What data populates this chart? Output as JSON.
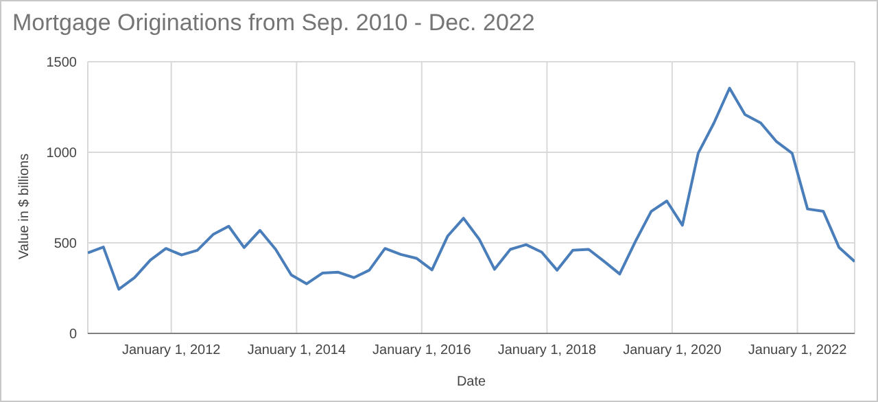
{
  "chart_data": {
    "type": "line",
    "title": "Mortgage Originations from Sep. 2010 - Dec. 2022",
    "xlabel": "Date",
    "ylabel": "Value in $ billions",
    "x": [
      "2010-09",
      "2010-12",
      "2011-03",
      "2011-06",
      "2011-09",
      "2011-12",
      "2012-03",
      "2012-06",
      "2012-09",
      "2012-12",
      "2013-03",
      "2013-06",
      "2013-09",
      "2013-12",
      "2014-03",
      "2014-06",
      "2014-09",
      "2014-12",
      "2015-03",
      "2015-06",
      "2015-09",
      "2015-12",
      "2016-03",
      "2016-06",
      "2016-09",
      "2016-12",
      "2017-03",
      "2017-06",
      "2017-09",
      "2017-12",
      "2018-03",
      "2018-06",
      "2018-09",
      "2018-12",
      "2019-03",
      "2019-06",
      "2019-09",
      "2019-12",
      "2020-03",
      "2020-06",
      "2020-09",
      "2020-12",
      "2021-03",
      "2021-06",
      "2021-09",
      "2021-12",
      "2022-03",
      "2022-06",
      "2022-09",
      "2022-12"
    ],
    "series": [
      {
        "color": "#4a7ebb",
        "values": [
          445,
          477,
          244,
          308,
          405,
          469,
          433,
          459,
          546,
          592,
          474,
          569,
          464,
          323,
          274,
          333,
          338,
          308,
          349,
          469,
          436,
          415,
          351,
          538,
          636,
          521,
          354,
          464,
          490,
          449,
          349,
          459,
          464,
          397,
          328,
          508,
          674,
          731,
          597,
          995,
          1162,
          1354,
          1208,
          1162,
          1059,
          995,
          687,
          674,
          474,
          397
        ]
      }
    ],
    "xlim": [
      "2010-09",
      "2022-12"
    ],
    "xticks": [
      {
        "value": "2012-01-01",
        "label": "January 1, 2012"
      },
      {
        "value": "2014-01-01",
        "label": "January 1, 2014"
      },
      {
        "value": "2016-01-01",
        "label": "January 1, 2016"
      },
      {
        "value": "2018-01-01",
        "label": "January 1, 2018"
      },
      {
        "value": "2020-01-01",
        "label": "January 1, 2020"
      },
      {
        "value": "2022-01-01",
        "label": "January 1, 2022"
      }
    ],
    "ylim": [
      0,
      1500
    ],
    "yticks": [
      0,
      500,
      1000,
      1500
    ],
    "grid": true,
    "legend": false,
    "marker": "none",
    "line_style": "solid"
  }
}
